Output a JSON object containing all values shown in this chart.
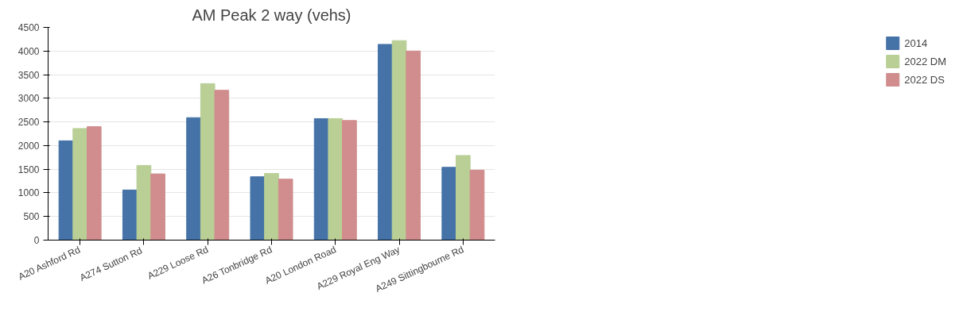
{
  "chart_data": {
    "type": "bar",
    "title": "AM Peak 2 way (vehs)",
    "categories": [
      "A20 Ashford Rd",
      "A274  Sutton Rd",
      "A229 Loose Rd",
      "A26 Tonbridge Rd",
      "A20 London Road",
      "A229 Royal Eng Way",
      "A249 Sittingbourne Rd"
    ],
    "series": [
      {
        "name": "2014",
        "color": "#4572a7",
        "values": [
          2100,
          1060,
          2590,
          1340,
          2570,
          4140,
          1540
        ]
      },
      {
        "name": "2022 DM",
        "color": "#b9cf96",
        "values": [
          2360,
          1580,
          3310,
          1410,
          2570,
          4220,
          1790
        ]
      },
      {
        "name": "2022 DS",
        "color": "#d18d8d",
        "values": [
          2400,
          1400,
          3170,
          1290,
          2530,
          4000,
          1480
        ]
      }
    ],
    "ylim": [
      0,
      4500
    ],
    "yticks": [
      0,
      500,
      1000,
      1500,
      2000,
      2500,
      3000,
      3500,
      4000,
      4500
    ],
    "grid": "y",
    "legend": "right"
  }
}
